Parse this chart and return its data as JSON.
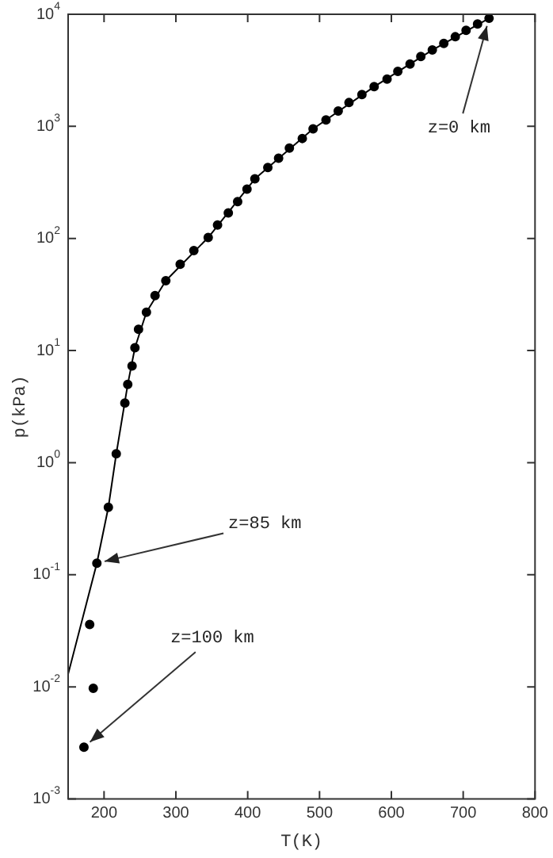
{
  "chart_data": {
    "type": "scatter",
    "xlabel": "T(K)",
    "ylabel": "p(kPa)",
    "log": "y",
    "marker": "circle",
    "legend": false,
    "grid": false,
    "xlim": [
      150,
      800
    ],
    "xticks": [
      {
        "value": 150,
        "label": null
      },
      200,
      300,
      400,
      500,
      600,
      700,
      800
    ],
    "ylim": [
      0.001,
      10000
    ],
    "yticks": [
      {
        "value": 0.001,
        "label": "10$^{-3}$"
      },
      {
        "value": 0.01,
        "label": "10$^{-2}$"
      },
      {
        "value": 0.1,
        "label": "10$^{-1}$"
      },
      {
        "value": 1,
        "label": "10$^{0}$"
      },
      {
        "value": 10,
        "label": "10$^{1}$"
      },
      {
        "value": 100,
        "label": "10$^{2}$"
      },
      {
        "value": 1000,
        "label": "10$^{3}$"
      },
      {
        "value": 10000,
        "label": "10$^{4}$"
      }
    ],
    "series": [
      {
        "type": "scatter",
        "color": "#000000",
        "x": [
          736,
          720,
          704,
          689,
          673,
          657,
          641,
          626,
          609,
          594,
          576,
          559,
          541,
          526,
          509,
          491,
          476,
          458,
          443,
          428,
          410,
          399,
          386,
          373,
          358,
          345,
          325,
          306,
          286,
          271,
          259,
          248,
          243,
          239,
          233,
          229,
          217,
          206,
          190,
          180,
          185,
          172
        ],
        "values": [
          9200,
          8200,
          7200,
          6300,
          5500,
          4800,
          4200,
          3600,
          3100,
          2640,
          2260,
          1920,
          1630,
          1370,
          1140,
          950,
          780,
          640,
          520,
          430,
          340,
          276,
          213,
          169,
          132,
          102,
          78,
          59,
          42,
          31,
          22,
          15.5,
          10.6,
          7.3,
          5.0,
          3.4,
          1.2,
          0.4,
          0.127,
          0.036,
          0.0097,
          0.0029
        ]
      },
      {
        "type": "line",
        "color": "#000000",
        "marker": "none",
        "x": [
          736,
          657,
          576,
          491,
          410,
          345,
          286,
          259,
          243,
          233,
          217,
          206,
          190,
          150
        ],
        "values": [
          9200,
          4800,
          2260,
          950,
          340,
          102,
          42,
          22,
          10.6,
          5.0,
          1.2,
          0.4,
          0.127,
          0.013
        ]
      }
    ],
    "annotations": [
      {
        "text": "z=0 km",
        "x": 736,
        "y": 9200
      },
      {
        "text": "z=85 km",
        "x": 190,
        "y": 0.127
      },
      {
        "text": "z=100 km",
        "x": 172,
        "y": 0.0029
      }
    ]
  }
}
